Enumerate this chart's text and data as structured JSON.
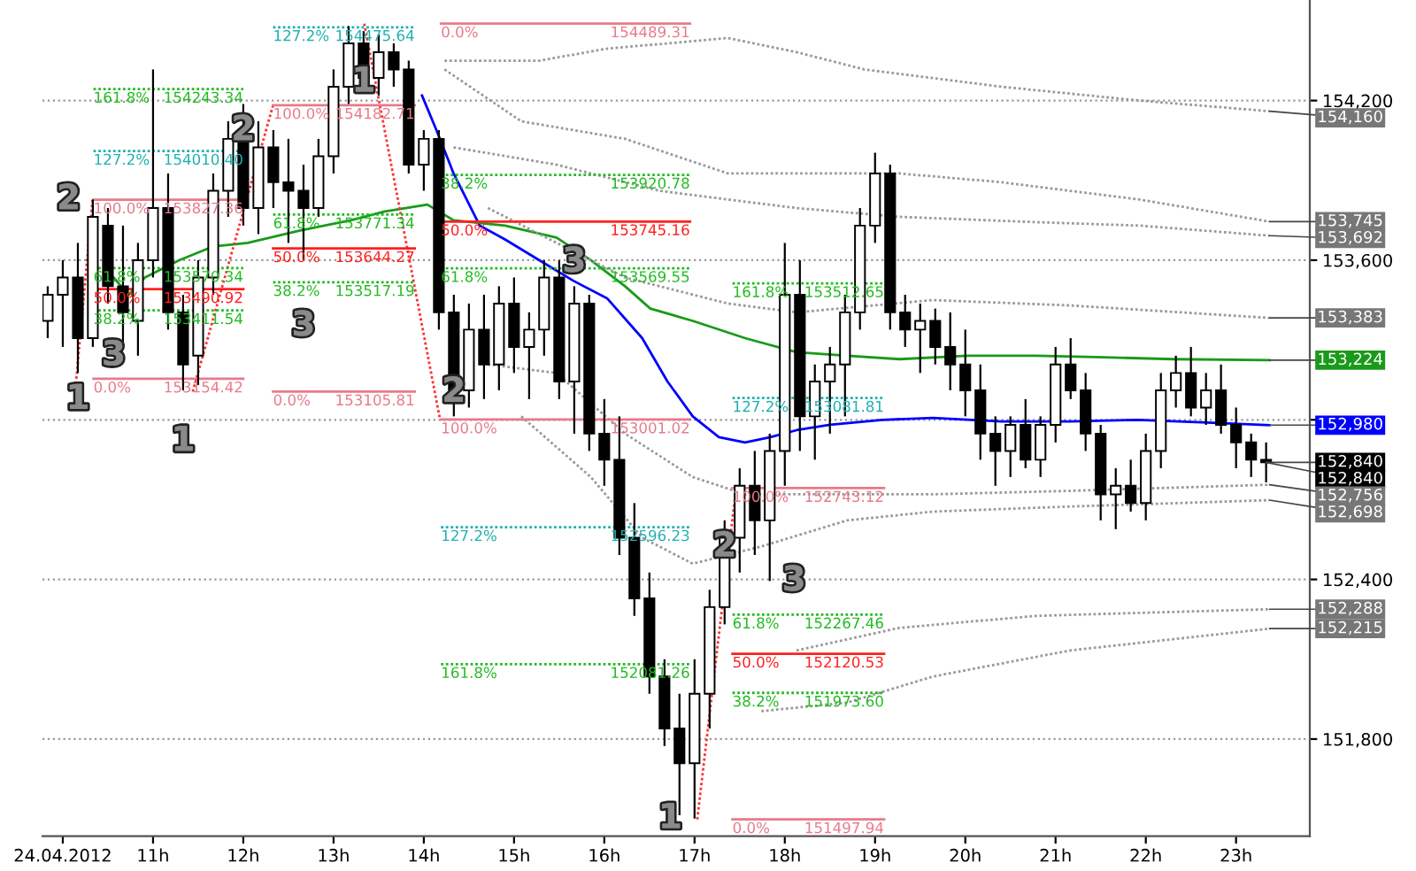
{
  "chart_data": {
    "type": "candlestick",
    "x": [
      9.833,
      10,
      10.167,
      10.333,
      10.5,
      10.667,
      10.833,
      11,
      11.167,
      11.333,
      11.5,
      11.667,
      11.833,
      12,
      12.167,
      12.333,
      12.5,
      12.667,
      12.833,
      13,
      13.167,
      13.333,
      13.5,
      13.667,
      13.833,
      14,
      14.167,
      14.333,
      14.5,
      14.667,
      14.833,
      15,
      15.167,
      15.333,
      15.5,
      15.667,
      15.833,
      16,
      16.167,
      16.333,
      16.5,
      16.667,
      16.833,
      17,
      17.167,
      17.333,
      17.5,
      17.667,
      17.833,
      18,
      18.167,
      18.333,
      18.5,
      18.667,
      18.833,
      19,
      19.167,
      19.333,
      19.5,
      19.667,
      19.833,
      20,
      20.167,
      20.333,
      20.5,
      20.667,
      20.833,
      21,
      21.167,
      21.333,
      21.5,
      21.667,
      21.833,
      22,
      22.167,
      22.333,
      22.5,
      22.667,
      22.833,
      23,
      23.167,
      23.333
    ],
    "ohlc": [
      [
        153372,
        153502,
        153307,
        153470
      ],
      [
        153470,
        153600,
        153274,
        153535
      ],
      [
        153535,
        153665,
        153176,
        153307
      ],
      [
        153307,
        153828,
        153274,
        153763
      ],
      [
        153730,
        153796,
        153437,
        153502
      ],
      [
        153502,
        153730,
        153274,
        153404
      ],
      [
        153372,
        153665,
        153241,
        153600
      ],
      [
        153600,
        154317,
        153535,
        153796
      ],
      [
        153796,
        153926,
        153339,
        153404
      ],
      [
        153404,
        153470,
        153111,
        153208
      ],
      [
        153241,
        153600,
        153131,
        153535
      ],
      [
        153535,
        153926,
        153470,
        153861
      ],
      [
        153861,
        154122,
        153763,
        154056
      ],
      [
        154056,
        154187,
        153730,
        153796
      ],
      [
        153796,
        154122,
        153698,
        154024
      ],
      [
        154024,
        154089,
        153796,
        153893
      ],
      [
        153893,
        154056,
        153665,
        153861
      ],
      [
        153861,
        153959,
        153600,
        153796
      ],
      [
        153796,
        154056,
        153763,
        153991
      ],
      [
        153991,
        154317,
        153926,
        154252
      ],
      [
        154252,
        154480,
        154187,
        154415
      ],
      [
        154415,
        154461,
        154252,
        154285
      ],
      [
        154285,
        154448,
        154219,
        154382
      ],
      [
        154382,
        154415,
        154252,
        154317
      ],
      [
        154317,
        154350,
        153926,
        153959
      ],
      [
        153959,
        154089,
        153861,
        154056
      ],
      [
        154056,
        154089,
        153339,
        153404
      ],
      [
        153404,
        153470,
        153013,
        153111
      ],
      [
        153111,
        153437,
        153046,
        153339
      ],
      [
        153339,
        153470,
        153078,
        153208
      ],
      [
        153208,
        153502,
        153111,
        153437
      ],
      [
        153437,
        153535,
        153176,
        153274
      ],
      [
        153274,
        153404,
        153078,
        153339
      ],
      [
        153339,
        153600,
        153241,
        153535
      ],
      [
        153535,
        153600,
        153078,
        153144
      ],
      [
        153144,
        153502,
        152948,
        153437
      ],
      [
        153437,
        153470,
        152883,
        152948
      ],
      [
        152948,
        153078,
        152752,
        152850
      ],
      [
        152850,
        153013,
        152492,
        152557
      ],
      [
        152557,
        152687,
        152263,
        152329
      ],
      [
        152329,
        152426,
        151970,
        152035
      ],
      [
        152035,
        152100,
        151774,
        151840
      ],
      [
        151840,
        151970,
        151514,
        151709
      ],
      [
        151709,
        152100,
        151501,
        151970
      ],
      [
        151970,
        152361,
        151840,
        152296
      ],
      [
        152296,
        152622,
        152231,
        152557
      ],
      [
        152557,
        152818,
        152426,
        152752
      ],
      [
        152752,
        152883,
        152492,
        152622
      ],
      [
        152622,
        152948,
        152394,
        152883
      ],
      [
        152883,
        153665,
        152752,
        153470
      ],
      [
        153470,
        153600,
        152883,
        153013
      ],
      [
        153013,
        153208,
        152850,
        153144
      ],
      [
        153144,
        153274,
        152948,
        153208
      ],
      [
        153208,
        153470,
        153013,
        153404
      ],
      [
        153404,
        153796,
        153339,
        153730
      ],
      [
        153730,
        154004,
        153665,
        153926
      ],
      [
        153926,
        153959,
        153339,
        153404
      ],
      [
        153404,
        153470,
        153274,
        153339
      ],
      [
        153339,
        153437,
        153176,
        153372
      ],
      [
        153372,
        153418,
        153208,
        153274
      ],
      [
        153274,
        153404,
        153111,
        153208
      ],
      [
        153208,
        153339,
        153013,
        153111
      ],
      [
        153111,
        153208,
        152850,
        152948
      ],
      [
        152948,
        153013,
        152752,
        152883
      ],
      [
        152883,
        153013,
        152785,
        152981
      ],
      [
        152981,
        153078,
        152818,
        152850
      ],
      [
        152850,
        153013,
        152785,
        152981
      ],
      [
        152981,
        153274,
        152915,
        153208
      ],
      [
        153208,
        153307,
        153078,
        153111
      ],
      [
        153111,
        153176,
        152883,
        152948
      ],
      [
        152948,
        152981,
        152622,
        152720
      ],
      [
        152720,
        152818,
        152589,
        152752
      ],
      [
        152752,
        152850,
        152655,
        152687
      ],
      [
        152687,
        152948,
        152622,
        152883
      ],
      [
        152883,
        153176,
        152818,
        153111
      ],
      [
        153111,
        153241,
        153046,
        153176
      ],
      [
        153176,
        153274,
        153013,
        153046
      ],
      [
        153046,
        153176,
        152981,
        153111
      ],
      [
        153111,
        153208,
        152948,
        152981
      ],
      [
        152981,
        153046,
        152818,
        152915
      ],
      [
        152915,
        152948,
        152785,
        152850
      ],
      [
        152850,
        152915,
        152765,
        152840
      ]
    ],
    "series": [
      {
        "type": "line",
        "color": "#0000ff",
        "line_style": "solid",
        "x": [
          13.98,
          14.14,
          14.33,
          14.62,
          14.9,
          15.28,
          15.66,
          16.03,
          16.42,
          16.7,
          16.98,
          17.27,
          17.56,
          17.84,
          18.13,
          18.5,
          19.08,
          19.64,
          20.4,
          21.16,
          21.92,
          22.68,
          23.37
        ],
        "values": [
          154219,
          154089,
          153926,
          153730,
          153678,
          153600,
          153522,
          153457,
          153307,
          153144,
          153013,
          152935,
          152915,
          152935,
          152961,
          152981,
          153000,
          153007,
          152994,
          152994,
          153000,
          152990,
          152980
        ]
      },
      {
        "type": "line",
        "color": "#1a9a1a",
        "line_style": "solid",
        "x": [
          10.53,
          10.73,
          10.91,
          11.29,
          11.67,
          12.05,
          12.62,
          13.19,
          13.57,
          14.04,
          14.33,
          14.9,
          15.47,
          15.85,
          16.23,
          16.51,
          16.98,
          17.56,
          18.13,
          18.69,
          19.27,
          20.03,
          20.78,
          21.54,
          22.3,
          23.37
        ],
        "values": [
          153548,
          153470,
          153535,
          153600,
          153652,
          153665,
          153711,
          153750,
          153783,
          153809,
          153750,
          153730,
          153685,
          153600,
          153502,
          153418,
          153372,
          153307,
          153254,
          153241,
          153228,
          153241,
          153241,
          153235,
          153228,
          153224
        ]
      },
      {
        "type": "line",
        "color": "#999999",
        "line_style": "dotted",
        "x": [
          14.23,
          15.28,
          16.03,
          17.37,
          18.13,
          18.88,
          20.4,
          21.93,
          23.37
        ],
        "values": [
          154350,
          154350,
          154395,
          154435,
          154382,
          154317,
          154252,
          154200,
          154160
        ]
      },
      {
        "type": "line",
        "color": "#999999",
        "line_style": "dotted",
        "x": [
          14.23,
          15.08,
          16.23,
          17.37,
          18.32,
          19.27,
          20.4,
          21.93,
          23.37
        ],
        "values": [
          154317,
          154122,
          154056,
          153926,
          153926,
          153926,
          153893,
          153828,
          153745
        ]
      },
      {
        "type": "line",
        "color": "#999999",
        "line_style": "dotted",
        "x": [
          14.33,
          15.47,
          16.61,
          17.37,
          18.13,
          19.27,
          20.78,
          21.93,
          23.37
        ],
        "values": [
          154024,
          153959,
          153861,
          153828,
          153796,
          153763,
          153743,
          153730,
          153692
        ]
      },
      {
        "type": "line",
        "color": "#999999",
        "line_style": "dotted",
        "x": [
          14.71,
          16.23,
          17.37,
          18.13,
          19.64,
          21.16,
          23.37
        ],
        "values": [
          153796,
          153535,
          153437,
          153404,
          153450,
          153430,
          153383
        ]
      },
      {
        "type": "line",
        "color": "#999999",
        "line_style": "dotted",
        "x": [
          14.71,
          15.47,
          16.23,
          16.98,
          17.56,
          18.13,
          19.64,
          21.16,
          23.37
        ],
        "values": [
          153208,
          153176,
          152948,
          152785,
          152720,
          152720,
          152720,
          152733,
          152756
        ]
      },
      {
        "type": "line",
        "color": "#999999",
        "line_style": "dotted",
        "x": [
          15.08,
          15.85,
          16.42,
          16.98,
          17.74,
          18.69,
          19.64,
          21.16,
          23.37
        ],
        "values": [
          153013,
          152785,
          152557,
          152459,
          152524,
          152622,
          152655,
          152674,
          152698
        ]
      },
      {
        "type": "line",
        "color": "#999999",
        "line_style": "dotted",
        "x": [
          18.13,
          19.27,
          20.78,
          22.11,
          23.37
        ],
        "values": [
          152133,
          152218,
          152263,
          152276,
          152288
        ]
      },
      {
        "type": "line",
        "color": "#999999",
        "line_style": "dotted",
        "x": [
          17.74,
          18.69,
          19.64,
          21.16,
          23.37
        ],
        "values": [
          151905,
          151937,
          152035,
          152133,
          152215
        ]
      },
      {
        "type": "line",
        "color": "#ff3030",
        "line_style": "dotted",
        "x": [
          10.15,
          10.33,
          null,
          11.44,
          12.33,
          null,
          13.34,
          14.18,
          null,
          17.03,
          17.46
        ],
        "values": [
          153154.42,
          153827.36,
          null,
          153105.81,
          154182.71,
          null,
          154489.31,
          153001.02,
          null,
          151497.94,
          152743.12
        ]
      },
      {
        "type": "line",
        "color": "#e87a8a",
        "line_style": "solid",
        "x": [
          10.34,
          12.0
        ],
        "values": [
          153827.36,
          153827.36
        ]
      },
      {
        "type": "line",
        "color": "#e87a8a",
        "line_style": "solid",
        "x": [
          10.34,
          12.0
        ],
        "values": [
          153154.42,
          153154.42
        ]
      },
      {
        "type": "line",
        "color": "#ff2020",
        "line_style": "solid",
        "x": [
          10.34,
          12.0
        ],
        "values": [
          153490.92,
          153490.92
        ]
      },
      {
        "type": "line",
        "color": "#22bb22",
        "line_style": "dotted",
        "x": [
          10.34,
          12.0
        ],
        "values": [
          154243.34,
          154243.34
        ]
      },
      {
        "type": "line",
        "color": "#22bb22",
        "line_style": "dotted",
        "x": [
          10.34,
          12.0
        ],
        "values": [
          153570.34,
          153570.34
        ]
      },
      {
        "type": "line",
        "color": "#22bb22",
        "line_style": "dotted",
        "x": [
          10.34,
          12.0
        ],
        "values": [
          153411.54,
          153411.54
        ]
      },
      {
        "type": "line",
        "color": "#20b0b0",
        "line_style": "dotted",
        "x": [
          10.34,
          12.0
        ],
        "values": [
          154010.4,
          154010.4
        ]
      },
      {
        "type": "line",
        "color": "#e87a8a",
        "line_style": "solid",
        "x": [
          12.33,
          13.9
        ],
        "values": [
          154182.71,
          154182.71
        ]
      },
      {
        "type": "line",
        "color": "#e87a8a",
        "line_style": "solid",
        "x": [
          12.33,
          13.9
        ],
        "values": [
          153105.81,
          153105.81
        ]
      },
      {
        "type": "line",
        "color": "#ff2020",
        "line_style": "solid",
        "x": [
          12.33,
          13.9
        ],
        "values": [
          153644.27,
          153644.27
        ]
      },
      {
        "type": "line",
        "color": "#22bb22",
        "line_style": "dotted",
        "x": [
          12.33,
          13.9
        ],
        "values": [
          153771.34,
          153771.34
        ]
      },
      {
        "type": "line",
        "color": "#22bb22",
        "line_style": "dotted",
        "x": [
          12.33,
          13.9
        ],
        "values": [
          153517.19,
          153517.19
        ]
      },
      {
        "type": "line",
        "color": "#20b0b0",
        "line_style": "dotted",
        "x": [
          12.33,
          13.9
        ],
        "values": [
          154475.64,
          154475.64
        ]
      },
      {
        "type": "line",
        "color": "#e87a8a",
        "line_style": "solid",
        "x": [
          14.19,
          16.95
        ],
        "values": [
          154489.31,
          154489.31
        ]
      },
      {
        "type": "line",
        "color": "#e87a8a",
        "line_style": "solid",
        "x": [
          14.19,
          16.95
        ],
        "values": [
          153001.02,
          153001.02
        ]
      },
      {
        "type": "line",
        "color": "#ff2020",
        "line_style": "solid",
        "x": [
          14.19,
          16.95
        ],
        "values": [
          153745.16,
          153745.16
        ]
      },
      {
        "type": "line",
        "color": "#22bb22",
        "line_style": "dotted",
        "x": [
          14.19,
          16.95
        ],
        "values": [
          153920.78,
          153920.78
        ]
      },
      {
        "type": "line",
        "color": "#22bb22",
        "line_style": "dotted",
        "x": [
          14.19,
          16.95
        ],
        "values": [
          153569.55,
          153569.55
        ]
      },
      {
        "type": "line",
        "color": "#22bb22",
        "line_style": "dotted",
        "x": [
          14.19,
          16.95
        ],
        "values": [
          152081.26,
          152081.26
        ]
      },
      {
        "type": "line",
        "color": "#20b0b0",
        "line_style": "dotted",
        "x": [
          14.19,
          16.95
        ],
        "values": [
          152596.23,
          152596.23
        ]
      },
      {
        "type": "line",
        "color": "#e87a8a",
        "line_style": "solid",
        "x": [
          17.42,
          19.1
        ],
        "values": [
          152743.12,
          152743.12
        ]
      },
      {
        "type": "line",
        "color": "#e87a8a",
        "line_style": "solid",
        "x": [
          17.42,
          19.1
        ],
        "values": [
          151497.94,
          151497.94
        ]
      },
      {
        "type": "line",
        "color": "#ff2020",
        "line_style": "solid",
        "x": [
          17.42,
          19.1
        ],
        "values": [
          152120.53,
          152120.53
        ]
      },
      {
        "type": "line",
        "color": "#22bb22",
        "line_style": "dotted",
        "x": [
          17.42,
          19.1
        ],
        "values": [
          153512.65,
          153512.65
        ]
      },
      {
        "type": "line",
        "color": "#22bb22",
        "line_style": "dotted",
        "x": [
          17.42,
          19.1
        ],
        "values": [
          152267.46,
          152267.46
        ]
      },
      {
        "type": "line",
        "color": "#22bb22",
        "line_style": "dotted",
        "x": [
          17.42,
          19.1
        ],
        "values": [
          151973.6,
          151973.6
        ]
      },
      {
        "type": "line",
        "color": "#20b0b0",
        "line_style": "dotted",
        "x": [
          17.42,
          19.1
        ],
        "values": [
          153081.81,
          153081.81
        ]
      }
    ],
    "xlim": [
      9.775,
      23.817
    ],
    "xticks": [
      {
        "value": 10,
        "label": "24.04.2012"
      },
      {
        "value": 11,
        "label": "11h"
      },
      {
        "value": 12,
        "label": "12h"
      },
      {
        "value": 13,
        "label": "13h"
      },
      {
        "value": 14,
        "label": "14h"
      },
      {
        "value": 15,
        "label": "15h"
      },
      {
        "value": 16,
        "label": "16h"
      },
      {
        "value": 17,
        "label": "17h"
      },
      {
        "value": 18,
        "label": "18h"
      },
      {
        "value": 19,
        "label": "19h"
      },
      {
        "value": 20,
        "label": "20h"
      },
      {
        "value": 21,
        "label": "21h"
      },
      {
        "value": 22,
        "label": "22h"
      },
      {
        "value": 23,
        "label": "23h"
      }
    ],
    "ylim": [
      151435,
      154578
    ],
    "yticks": [
      {
        "value": 151800,
        "label": "151,800"
      },
      {
        "value": 152400,
        "label": "152,400"
      },
      {
        "value": 153000,
        "label": null
      },
      {
        "value": 153600,
        "label": "153,600"
      },
      {
        "value": 154200,
        "label": "154,200"
      }
    ],
    "grid": "y",
    "annotations": [
      {
        "text": "161.8%",
        "x": 10.34,
        "y": 154243.34
      },
      {
        "text": "154243.34",
        "x": 12.0,
        "y": 154243.34
      },
      {
        "text": "127.2%",
        "x": 10.34,
        "y": 154010.4
      },
      {
        "text": "154010.40",
        "x": 12.0,
        "y": 154010.4
      },
      {
        "text": "100.0%",
        "x": 10.34,
        "y": 153827.36
      },
      {
        "text": "153827.36",
        "x": 12.0,
        "y": 153827.36
      },
      {
        "text": "61.8%",
        "x": 10.34,
        "y": 153570.34
      },
      {
        "text": "153570.34",
        "x": 12.0,
        "y": 153570.34
      },
      {
        "text": "50.0%",
        "x": 10.34,
        "y": 153490.92
      },
      {
        "text": "153490.92",
        "x": 12.0,
        "y": 153490.92
      },
      {
        "text": "38.2%",
        "x": 10.34,
        "y": 153411.54
      },
      {
        "text": "153411.54",
        "x": 12.0,
        "y": 153411.54
      },
      {
        "text": "0.0%",
        "x": 10.34,
        "y": 153154.42
      },
      {
        "text": "153154.42",
        "x": 12.0,
        "y": 153154.42
      },
      {
        "text": "127.2%",
        "x": 12.33,
        "y": 154475.64
      },
      {
        "text": "154475.64",
        "x": 13.9,
        "y": 154475.64
      },
      {
        "text": "100.0%",
        "x": 12.33,
        "y": 154182.71
      },
      {
        "text": "154182.71",
        "x": 13.9,
        "y": 154182.71
      },
      {
        "text": "61.8%",
        "x": 12.33,
        "y": 153771.34
      },
      {
        "text": "153771.34",
        "x": 13.9,
        "y": 153771.34
      },
      {
        "text": "50.0%",
        "x": 12.33,
        "y": 153644.27
      },
      {
        "text": "153644.27",
        "x": 13.9,
        "y": 153644.27
      },
      {
        "text": "38.2%",
        "x": 12.33,
        "y": 153517.19
      },
      {
        "text": "153517.19",
        "x": 13.9,
        "y": 153517.19
      },
      {
        "text": "0.0%",
        "x": 12.33,
        "y": 153105.81
      },
      {
        "text": "153105.81",
        "x": 13.9,
        "y": 153105.81
      },
      {
        "text": "0.0%",
        "x": 14.19,
        "y": 154489.31
      },
      {
        "text": "154489.31",
        "x": 16.95,
        "y": 154489.31
      },
      {
        "text": "38.2%",
        "x": 14.19,
        "y": 153920.78
      },
      {
        "text": "153920.78",
        "x": 16.95,
        "y": 153920.78
      },
      {
        "text": "50.0%",
        "x": 14.19,
        "y": 153745.16
      },
      {
        "text": "153745.16",
        "x": 16.95,
        "y": 153745.16
      },
      {
        "text": "61.8%",
        "x": 14.19,
        "y": 153569.55
      },
      {
        "text": "153569.55",
        "x": 16.95,
        "y": 153569.55
      },
      {
        "text": "100.0%",
        "x": 14.19,
        "y": 153001.02
      },
      {
        "text": "153001.02",
        "x": 16.95,
        "y": 153001.02
      },
      {
        "text": "127.2%",
        "x": 14.19,
        "y": 152596.23
      },
      {
        "text": "152596.23",
        "x": 16.95,
        "y": 152596.23
      },
      {
        "text": "161.8%",
        "x": 14.19,
        "y": 152081.26
      },
      {
        "text": "152081.26",
        "x": 16.95,
        "y": 152081.26
      },
      {
        "text": "161.8%",
        "x": 17.42,
        "y": 153512.65
      },
      {
        "text": "153512.65",
        "x": 19.1,
        "y": 153512.65
      },
      {
        "text": "127.2%",
        "x": 17.42,
        "y": 153081.81
      },
      {
        "text": "153081.81",
        "x": 19.1,
        "y": 153081.81
      },
      {
        "text": "100.0%",
        "x": 17.42,
        "y": 152743.12
      },
      {
        "text": "152743.12",
        "x": 19.1,
        "y": 152743.12
      },
      {
        "text": "61.8%",
        "x": 17.42,
        "y": 152267.46
      },
      {
        "text": "152267.46",
        "x": 19.1,
        "y": 152267.46
      },
      {
        "text": "50.0%",
        "x": 17.42,
        "y": 152120.53
      },
      {
        "text": "152120.53",
        "x": 19.1,
        "y": 152120.53
      },
      {
        "text": "38.2%",
        "x": 17.42,
        "y": 151973.6
      },
      {
        "text": "151973.60",
        "x": 19.1,
        "y": 151973.6
      },
      {
        "text": "0.0%",
        "x": 17.42,
        "y": 151497.94
      },
      {
        "text": "151497.94",
        "x": 19.1,
        "y": 151497.94
      },
      {
        "text": "2",
        "x": 10.333,
        "y": 153828
      },
      {
        "text": "1",
        "x": 10.167,
        "y": 153176
      },
      {
        "text": "3",
        "x": 10.833,
        "y": 153241
      },
      {
        "text": "1",
        "x": 11.333,
        "y": 153111
      },
      {
        "text": "2",
        "x": 12,
        "y": 154187
      },
      {
        "text": "3",
        "x": 12.667,
        "y": 153600
      },
      {
        "text": "1",
        "x": 13.333,
        "y": 154461
      },
      {
        "text": "2",
        "x": 14.333,
        "y": 153013
      },
      {
        "text": "3",
        "x": 15.667,
        "y": 153502
      },
      {
        "text": "2",
        "x": 17.333,
        "y": 152622
      },
      {
        "text": "3",
        "x": 17.833,
        "y": 152394
      },
      {
        "text": "1",
        "x": 17,
        "y": 151501
      },
      {
        "text": "154,160",
        "x": 23.37,
        "y": 154160
      },
      {
        "text": "153,745",
        "x": 23.37,
        "y": 153745
      },
      {
        "text": "153,692",
        "x": 23.37,
        "y": 153692
      },
      {
        "text": "153,383",
        "x": 23.37,
        "y": 153383
      },
      {
        "text": "153,224",
        "x": 23.37,
        "y": 153224
      },
      {
        "text": "152,980",
        "x": 23.37,
        "y": 152980
      },
      {
        "text": "152,840",
        "x": 23.333,
        "y": 152840
      },
      {
        "text": "152,840",
        "x": 23.333,
        "y": 152840
      },
      {
        "text": "152,756",
        "x": 23.37,
        "y": 152756
      },
      {
        "text": "152,698",
        "x": 23.37,
        "y": 152698
      },
      {
        "text": "152,288",
        "x": 23.37,
        "y": 152288
      },
      {
        "text": "152,215",
        "x": 23.37,
        "y": 152215
      }
    ]
  }
}
